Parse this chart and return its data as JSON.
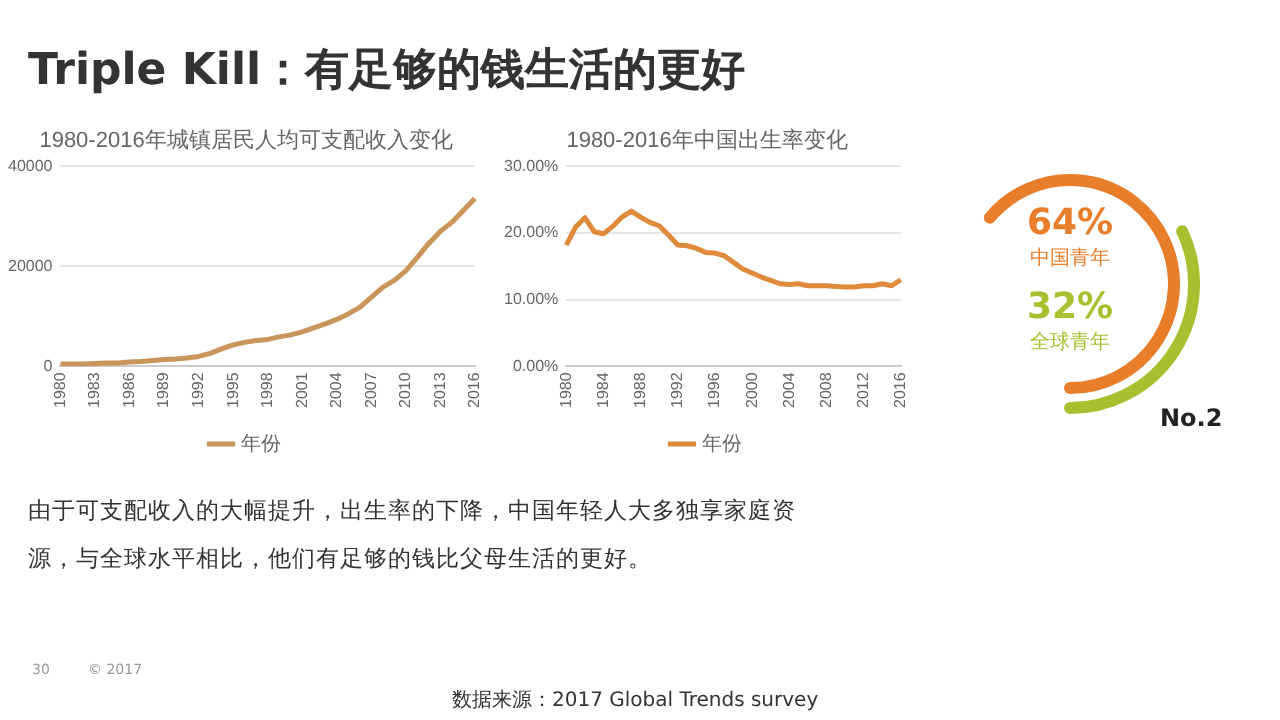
{
  "chart_data": [
    {
      "type": "line",
      "title": "1980-2016年城镇居民人均可支配收入变化",
      "categories": [
        "1980",
        null,
        null,
        "1983",
        null,
        null,
        "1986",
        null,
        null,
        "1989",
        null,
        null,
        "1992",
        null,
        null,
        "1995",
        null,
        null,
        "1998",
        null,
        null,
        "2001",
        null,
        null,
        "2004",
        null,
        null,
        "2007",
        null,
        null,
        "2010",
        null,
        null,
        "2013",
        null,
        null,
        "2016"
      ],
      "series": [
        {
          "name": "年份",
          "color": "#c9955a",
          "values": [
            500,
            500,
            500,
            600,
            700,
            700,
            900,
            1000,
            1200,
            1400,
            1500,
            1700,
            2000,
            2600,
            3500,
            4300,
            4800,
            5200,
            5400,
            5900,
            6300,
            6900,
            7700,
            8500,
            9400,
            10500,
            11800,
            13800,
            15800,
            17200,
            19100,
            21800,
            24600,
            27000,
            28800,
            31200,
            33600
          ]
        }
      ],
      "ylim": [
        0,
        40000
      ],
      "yticks": [
        0,
        20000,
        40000
      ],
      "grid": "y",
      "legend": "bottom",
      "marker": "none",
      "annotations": [
        "Triple Kill：有足够的钱生活的更好",
        "由于可支配收入的大幅提升，出生率的下降，中国年轻人大多独享家庭资源，与全球水平相比，他们有足够的钱比父母生活的更好。",
        "30",
        "© 2017",
        "数据来源：2017 Global Trends survey"
      ]
    },
    {
      "type": "line",
      "title": "1980-2016年中国出生率变化",
      "categories": [
        "1980",
        null,
        null,
        null,
        "1984",
        null,
        null,
        null,
        "1988",
        null,
        null,
        null,
        "1992",
        null,
        null,
        null,
        "1996",
        null,
        null,
        null,
        "2000",
        null,
        null,
        null,
        "2004",
        null,
        null,
        null,
        "2008",
        null,
        null,
        null,
        "2012",
        null,
        null,
        null,
        "2016"
      ],
      "series": [
        {
          "name": "年份",
          "color": "#e08a3c",
          "values": [
            18.2,
            20.9,
            22.3,
            20.2,
            19.9,
            21.0,
            22.4,
            23.3,
            22.4,
            21.6,
            21.1,
            19.7,
            18.2,
            18.1,
            17.7,
            17.1,
            17.0,
            16.6,
            15.6,
            14.6,
            14.0,
            13.4,
            12.9,
            12.4,
            12.3,
            12.4,
            12.1,
            12.1,
            12.1,
            12.0,
            11.9,
            11.9,
            12.1,
            12.1,
            12.4,
            12.1,
            13.0
          ]
        }
      ],
      "ylim": [
        0,
        30
      ],
      "yticks": [
        {
          "value": 0,
          "label": "0.00%"
        },
        {
          "value": 10,
          "label": "10.00%"
        },
        {
          "value": 20,
          "label": "20.00%"
        },
        {
          "value": 30,
          "label": "30.00%"
        }
      ],
      "grid": "y",
      "legend": "bottom",
      "marker": "none"
    },
    {
      "type": "other",
      "categories": [
        "中国青年",
        "全球青年"
      ],
      "values": [
        64,
        32
      ],
      "value_labels": [
        "64%",
        "32%"
      ],
      "colors": [
        "#e87d2a",
        "#a8c030"
      ],
      "annotations": [
        "No.2"
      ]
    }
  ]
}
